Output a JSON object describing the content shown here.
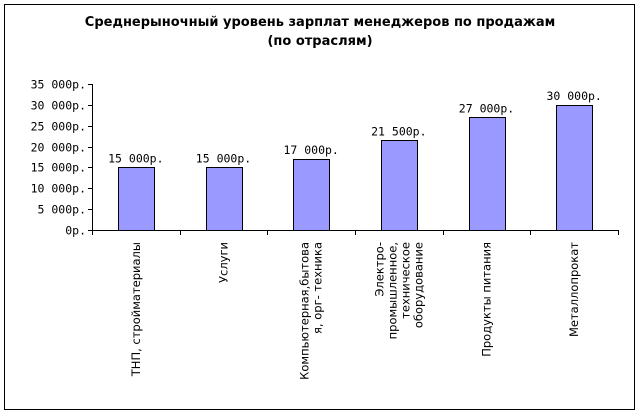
{
  "chart_data": {
    "type": "bar",
    "title_lines": [
      "Среднерыночный уровень зарплат менеджеров по продажам",
      "(по отраслям)"
    ],
    "categories": [
      [
        "ТНП, стройматериалы"
      ],
      [
        "Услуги"
      ],
      [
        "Компьютерная,бытова",
        "я, орг- техника"
      ],
      [
        "Электро-",
        "промышленное,",
        "техническое",
        "оборудование"
      ],
      [
        "Продукты питания"
      ],
      [
        "Металлопрокат"
      ]
    ],
    "values": [
      15000,
      15000,
      17000,
      21500,
      27000,
      30000
    ],
    "value_labels": [
      "15 000р.",
      "15 000р.",
      "17 000р.",
      "21 500р.",
      "27 000р.",
      "30 000р."
    ],
    "y_ticks": [
      0,
      5000,
      10000,
      15000,
      20000,
      25000,
      30000,
      35000
    ],
    "y_tick_labels": [
      "0р.",
      "5 000р.",
      "10 000р.",
      "15 000р.",
      "20 000р.",
      "25 000р.",
      "30 000р.",
      "35 000р."
    ],
    "ylim": [
      0,
      35000
    ],
    "grid": false,
    "legend": "none",
    "bar_color": "#9999ff",
    "bar_edge_color": "#000000",
    "plot_bg": "#ffffff"
  }
}
